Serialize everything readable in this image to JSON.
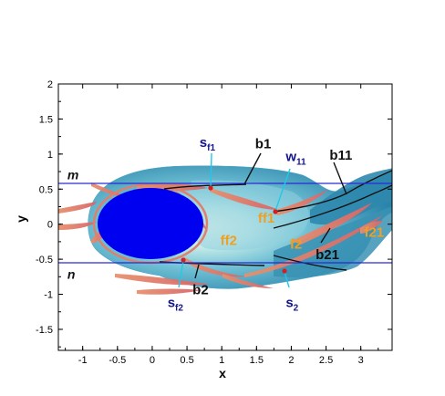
{
  "chart_data": {
    "type": "contour",
    "xlabel": "x",
    "ylabel": "y",
    "xlim": [
      -1.35,
      3.45
    ],
    "ylim": [
      -1.8,
      2.0
    ],
    "x_ticks": [
      -1,
      -0.5,
      0,
      0.5,
      1,
      1.5,
      2,
      2.5,
      3
    ],
    "x_tick_labels": [
      "-1",
      "-0.5",
      "0",
      "0.5",
      "1",
      "1.5",
      "2",
      "2.5",
      "3"
    ],
    "y_ticks": [
      -1.5,
      -1,
      -0.5,
      0,
      0.5,
      1,
      1.5,
      2
    ],
    "y_tick_labels": [
      "-1.5",
      "-1",
      "-0.5",
      "0",
      "0.5",
      "1",
      "1.5",
      "2"
    ],
    "grid": false,
    "horizontal_lines": [
      {
        "label": "m",
        "y": 0.57
      },
      {
        "label": "n",
        "y": -0.55
      }
    ],
    "cylinder": {
      "cx": 0,
      "cy": 0,
      "rx": 0.75,
      "ry": 0.5
    },
    "points": [
      {
        "name": "s_f1",
        "x": 0.85,
        "y": 0.52
      },
      {
        "name": "w_11",
        "x": 1.77,
        "y": 0.18
      },
      {
        "name": "s_f2",
        "x": 0.45,
        "y": -0.5
      },
      {
        "name": "s_2",
        "x": 1.92,
        "y": -0.65
      }
    ],
    "annotations": [
      {
        "text": "s",
        "sub": "f1",
        "color": "blue",
        "x": 0.68,
        "y": 1.1
      },
      {
        "text": "b1",
        "color": "black",
        "x": 1.48,
        "y": 1.08
      },
      {
        "text": "w",
        "sub": "11",
        "color": "blue",
        "x": 1.92,
        "y": 0.9
      },
      {
        "text": "b11",
        "color": "black",
        "x": 2.55,
        "y": 0.92
      },
      {
        "text": "ff1",
        "color": "orange",
        "x": 1.52,
        "y": 0.02
      },
      {
        "text": "ff2",
        "color": "orange",
        "x": 0.98,
        "y": -0.3
      },
      {
        "text": "f2",
        "color": "orange",
        "x": 1.98,
        "y": -0.35
      },
      {
        "text": "b21",
        "color": "black",
        "x": 2.35,
        "y": -0.5
      },
      {
        "text": "f21",
        "color": "orange",
        "x": 3.05,
        "y": -0.18
      },
      {
        "text": "b2",
        "color": "black",
        "x": 0.58,
        "y": -1.0
      },
      {
        "text": "s",
        "sub": "f2",
        "color": "blue",
        "x": 0.22,
        "y": -1.18
      },
      {
        "text": "s",
        "sub": "2",
        "color": "blue",
        "x": 1.92,
        "y": -1.18
      },
      {
        "text": "m",
        "color": "black",
        "x": -1.22,
        "y": 0.64
      },
      {
        "text": "n",
        "color": "black",
        "x": -1.22,
        "y": -0.78
      }
    ]
  },
  "colors": {
    "cylinder": "#0000f0",
    "guide_lines": "#2a2ad8",
    "wake_dark": "#2e86aa",
    "wake_mid": "#5fb4cc",
    "wake_light": "#a9dce8",
    "vortex": "#e37a62",
    "pointer_cyan": "#22c8e8",
    "marker": "#d02020"
  }
}
